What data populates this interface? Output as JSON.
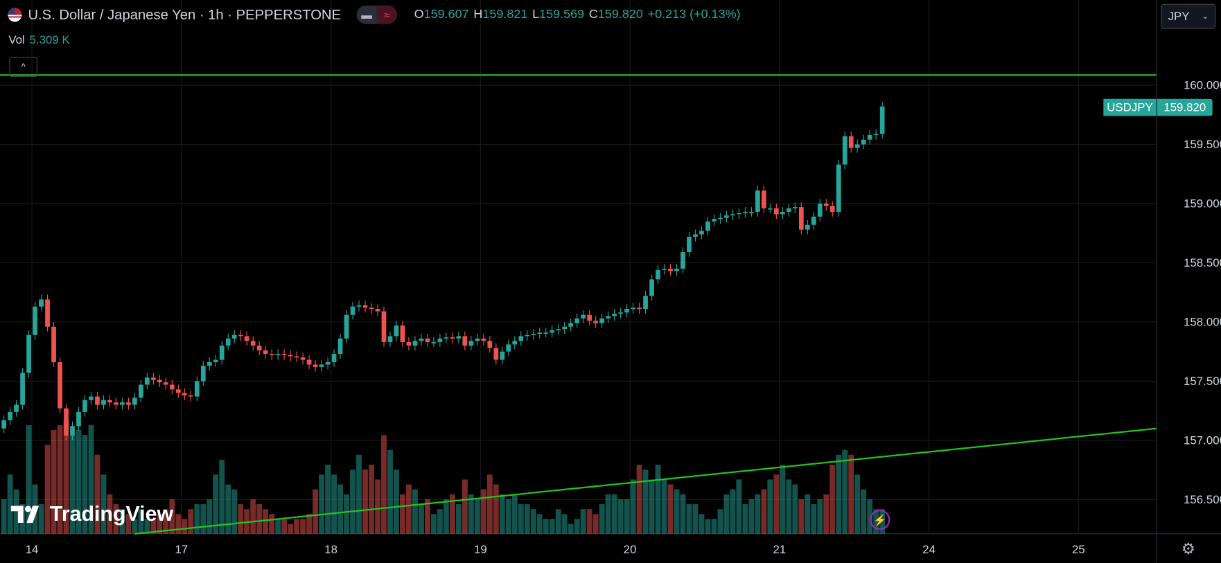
{
  "header": {
    "title": "U.S. Dollar / Japanese Yen · 1h · PEPPERSTONE",
    "flag_icon": "us-flag-icon",
    "pill_left_icon": "minus-icon",
    "pill_right_icon": "approx-icon",
    "pill_right_glyph": "≈",
    "ohlc": {
      "o_label": "O",
      "o": "159.607",
      "h_label": "H",
      "h": "159.821",
      "l_label": "L",
      "l": "159.569",
      "c_label": "C",
      "c": "159.820",
      "change": "+0.213 (+0.13%)"
    },
    "vol_label": "Vol",
    "vol_value": "5.309 K",
    "collapse_glyph": "^"
  },
  "currency_select": {
    "value": "JPY"
  },
  "symbol_tag": {
    "symbol": "USDJPY",
    "price": "159.820"
  },
  "logo": {
    "text": "TradingView"
  },
  "colors": {
    "up": "#26a69a",
    "down": "#ef5350",
    "line": "#22c41f",
    "grid": "#1a1a1a",
    "background": "#000000"
  },
  "chart_data": {
    "type": "candlestick",
    "interval": "1h",
    "ylim": [
      156.21,
      160.72
    ],
    "y_ticks": [
      "160.000",
      "159.500",
      "159.000",
      "158.500",
      "158.000",
      "157.500",
      "157.000",
      "156.500"
    ],
    "x_ticks": [
      "14",
      "17",
      "18",
      "19",
      "20",
      "21",
      "24",
      "25"
    ],
    "grid": true,
    "last_price": 159.82,
    "closes": [
      157.17,
      157.24,
      157.3,
      157.57,
      157.89,
      158.13,
      158.19,
      157.96,
      157.66,
      157.27,
      157.04,
      157.12,
      157.24,
      157.34,
      157.37,
      157.3,
      157.34,
      157.32,
      157.3,
      157.32,
      157.3,
      157.36,
      157.47,
      157.53,
      157.51,
      157.49,
      157.47,
      157.43,
      157.4,
      157.38,
      157.37,
      157.5,
      157.63,
      157.66,
      157.68,
      157.8,
      157.86,
      157.89,
      157.88,
      157.84,
      157.8,
      157.76,
      157.73,
      157.72,
      157.73,
      157.72,
      157.71,
      157.7,
      157.68,
      157.64,
      157.62,
      157.64,
      157.66,
      157.73,
      157.86,
      158.06,
      158.13,
      158.14,
      158.12,
      158.11,
      158.09,
      157.83,
      157.88,
      157.97,
      157.83,
      157.8,
      157.84,
      157.86,
      157.83,
      157.83,
      157.86,
      157.87,
      157.86,
      157.88,
      157.8,
      157.84,
      157.86,
      157.84,
      157.78,
      157.68,
      157.75,
      157.81,
      157.84,
      157.88,
      157.89,
      157.9,
      157.91,
      157.91,
      157.93,
      157.94,
      157.96,
      157.99,
      158.03,
      158.06,
      158.01,
      157.99,
      158.03,
      158.05,
      158.07,
      158.08,
      158.11,
      158.12,
      158.11,
      158.22,
      158.36,
      158.44,
      158.45,
      158.43,
      158.45,
      158.59,
      158.72,
      158.74,
      158.77,
      158.85,
      158.87,
      158.88,
      158.9,
      158.91,
      158.92,
      158.93,
      158.93,
      159.11,
      158.96,
      158.96,
      158.91,
      158.93,
      158.96,
      158.97,
      158.78,
      158.82,
      158.89,
      159.0,
      158.98,
      158.93,
      159.33,
      159.57,
      159.47,
      159.5,
      159.54,
      159.58,
      159.59,
      159.82
    ],
    "first_open": 157.1,
    "volume_k": [
      7,
      12,
      9,
      6,
      22,
      10,
      6,
      18,
      21,
      22,
      23,
      20,
      21,
      20,
      22,
      16,
      12,
      8,
      6,
      5,
      4,
      3,
      5,
      3,
      3,
      4,
      5,
      7,
      4,
      3,
      5,
      6,
      6,
      7,
      12,
      15,
      10,
      9,
      6,
      5,
      7,
      6,
      5,
      4,
      3,
      3,
      2,
      3,
      3,
      4,
      9,
      12,
      14,
      12,
      10,
      8,
      13,
      16,
      13,
      14,
      11,
      20,
      17,
      13,
      8,
      10,
      9,
      6,
      7,
      4,
      5,
      7,
      8,
      6,
      11,
      8,
      7,
      9,
      12,
      10,
      8,
      7,
      8,
      6,
      6,
      5,
      4,
      3,
      3,
      5,
      4,
      2,
      3,
      5,
      5,
      4,
      6,
      8,
      8,
      7,
      7,
      11,
      14,
      13,
      11,
      14,
      11,
      10,
      9,
      8,
      6,
      6,
      4,
      3,
      3,
      5,
      8,
      9,
      11,
      6,
      7,
      8,
      9,
      11,
      12,
      14,
      11,
      10,
      7,
      8,
      6,
      7,
      8,
      14,
      16,
      17,
      16,
      12,
      9,
      7,
      5,
      5
    ],
    "horizontal_line": {
      "price": 160.086
    },
    "trend_line": {
      "start": {
        "bar": 21,
        "price": 156.21
      },
      "end": {
        "bar": 185,
        "price": 157.1
      }
    }
  },
  "icons": {
    "bolt": "lightning-icon",
    "gear": "settings-icon"
  }
}
